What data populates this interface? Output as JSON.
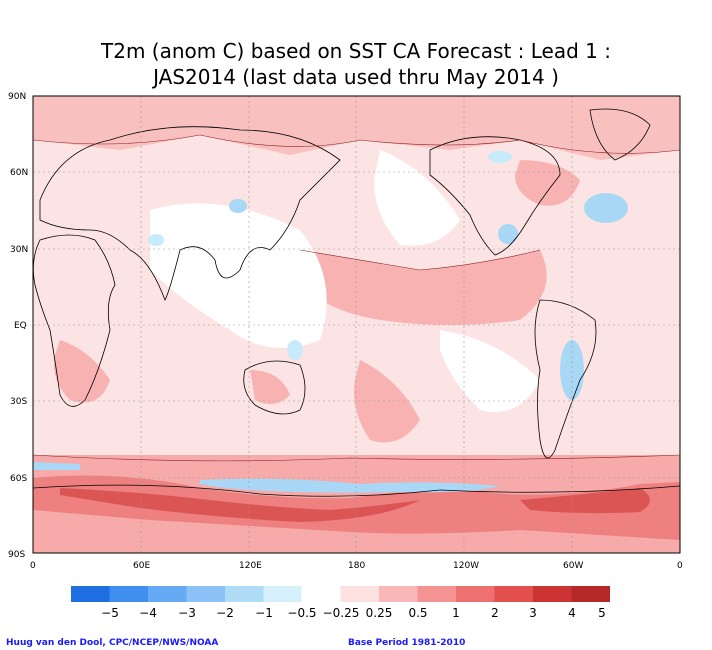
{
  "title": {
    "line1": "T2m (anom C) based on SST CA Forecast : Lead 1 :",
    "line2": "JAS2014 (last data used thru May 2014 )"
  },
  "map": {
    "lat_labels": [
      "90N",
      "60N",
      "30N",
      "EQ",
      "30S",
      "60S",
      "90S"
    ],
    "lon_labels": [
      "0",
      "60E",
      "120E",
      "180",
      "120W",
      "60W",
      "0"
    ]
  },
  "colorbar": {
    "labels": [
      "−5",
      "−4",
      "−3",
      "−2",
      "−1",
      "−0.5",
      "−0.25",
      "0.25",
      "0.5",
      "1",
      "2",
      "3",
      "4",
      "5"
    ],
    "colors": [
      "#1f6fe0",
      "#3f8ef0",
      "#66aaf5",
      "#8cc2f7",
      "#b0dcf8",
      "#d6f0fb",
      "#ffffff",
      "#fde0e0",
      "#f9b7b7",
      "#f59393",
      "#ee7070",
      "#e34e4e",
      "#cc3434",
      "#b52828"
    ]
  },
  "credits": {
    "left": "Huug van den Dool, CPC/NCEP/NWS/NOAA",
    "right": "Base Period 1981-2010"
  }
}
